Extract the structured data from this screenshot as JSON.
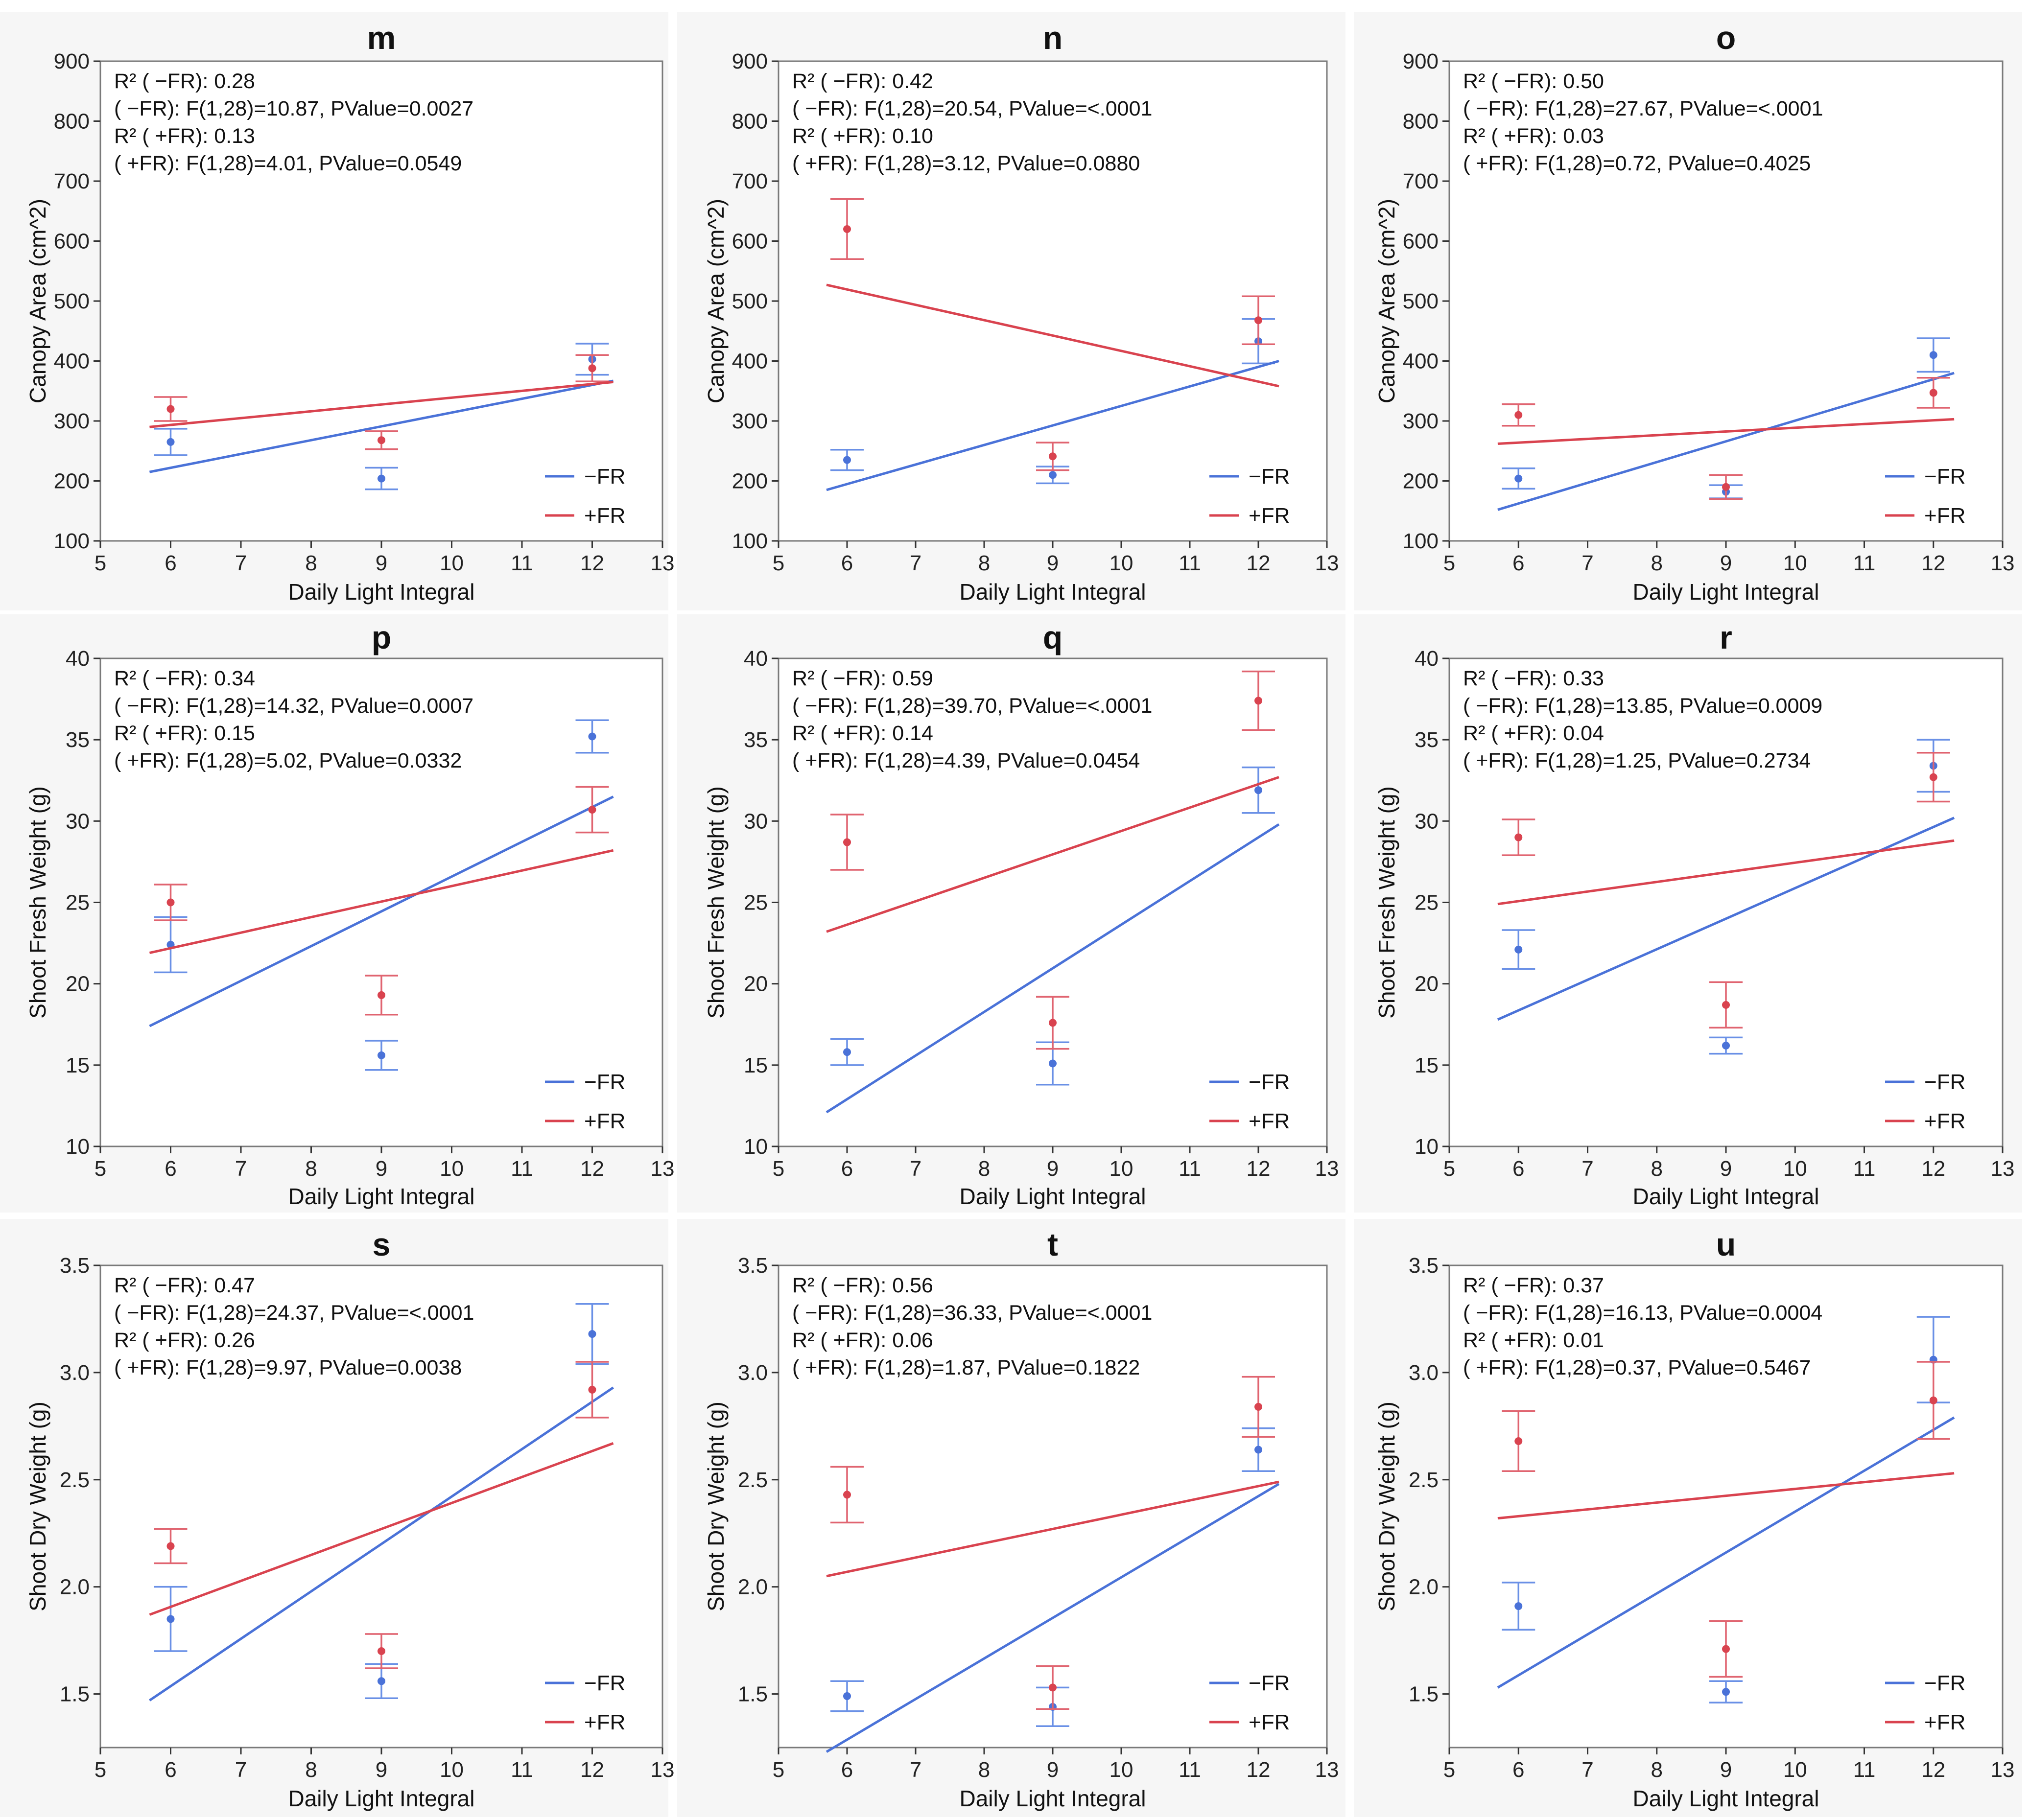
{
  "colors": {
    "minus_fr": "#4a72d8",
    "plus_fr": "#d9434f",
    "error_minus_fr": "#6a90e6",
    "error_plus_fr": "#e06470"
  },
  "legend": {
    "minus_fr": "−FR",
    "plus_fr": "+FR"
  },
  "chart_data": [
    {
      "type": "scatter",
      "title": "m",
      "xlabel": "Daily Light Integral",
      "ylabel": "Canopy Area (cm^2)",
      "xlim": [
        5,
        13
      ],
      "ylim": [
        100,
        900
      ],
      "xticks": [
        "5",
        "6",
        "7",
        "8",
        "9",
        "10",
        "11",
        "12",
        "13"
      ],
      "yticks": [
        "100",
        "200",
        "300",
        "400",
        "500",
        "600",
        "700",
        "800",
        "900"
      ],
      "stats": [
        "R² ( −FR): 0.28",
        "( −FR): F(1,28)=10.87, PValue=0.0027",
        "R² ( +FR): 0.13",
        "( +FR): F(1,28)=4.01, PValue=0.0549"
      ],
      "series": [
        {
          "name": "−FR",
          "points": [
            {
              "x": 6,
              "y": 265,
              "lo": 243,
              "hi": 287
            },
            {
              "x": 9,
              "y": 204,
              "lo": 186,
              "hi": 222
            },
            {
              "x": 12,
              "y": 403,
              "lo": 377,
              "hi": 429
            }
          ],
          "fit": [
            [
              5.7,
              215
            ],
            [
              12.3,
              367
            ]
          ]
        },
        {
          "name": "+FR",
          "points": [
            {
              "x": 6,
              "y": 320,
              "lo": 300,
              "hi": 340
            },
            {
              "x": 9,
              "y": 268,
              "lo": 253,
              "hi": 283
            },
            {
              "x": 12,
              "y": 388,
              "lo": 366,
              "hi": 410
            }
          ],
          "fit": [
            [
              5.7,
              290
            ],
            [
              12.3,
              365
            ]
          ]
        }
      ]
    },
    {
      "type": "scatter",
      "title": "n",
      "xlabel": "Daily Light Integral",
      "ylabel": "Canopy Area (cm^2)",
      "xlim": [
        5,
        13
      ],
      "ylim": [
        100,
        900
      ],
      "xticks": [
        "5",
        "6",
        "7",
        "8",
        "9",
        "10",
        "11",
        "12",
        "13"
      ],
      "yticks": [
        "100",
        "200",
        "300",
        "400",
        "500",
        "600",
        "700",
        "800",
        "900"
      ],
      "stats": [
        "R² ( −FR): 0.42",
        "( −FR): F(1,28)=20.54, PValue=<.0001",
        "R² ( +FR): 0.10",
        "( +FR): F(1,28)=3.12, PValue=0.0880"
      ],
      "series": [
        {
          "name": "−FR",
          "points": [
            {
              "x": 6,
              "y": 235,
              "lo": 218,
              "hi": 252
            },
            {
              "x": 9,
              "y": 210,
              "lo": 196,
              "hi": 224
            },
            {
              "x": 12,
              "y": 433,
              "lo": 396,
              "hi": 470
            }
          ],
          "fit": [
            [
              5.7,
              185
            ],
            [
              12.3,
              400
            ]
          ]
        },
        {
          "name": "+FR",
          "points": [
            {
              "x": 6,
              "y": 620,
              "lo": 570,
              "hi": 670
            },
            {
              "x": 9,
              "y": 241,
              "lo": 218,
              "hi": 264
            },
            {
              "x": 12,
              "y": 468,
              "lo": 428,
              "hi": 508
            }
          ],
          "fit": [
            [
              5.7,
              527
            ],
            [
              12.3,
              358
            ]
          ]
        }
      ]
    },
    {
      "type": "scatter",
      "title": "o",
      "xlabel": "Daily Light Integral",
      "ylabel": "Canopy Area (cm^2)",
      "xlim": [
        5,
        13
      ],
      "ylim": [
        100,
        900
      ],
      "xticks": [
        "5",
        "6",
        "7",
        "8",
        "9",
        "10",
        "11",
        "12",
        "13"
      ],
      "yticks": [
        "100",
        "200",
        "300",
        "400",
        "500",
        "600",
        "700",
        "800",
        "900"
      ],
      "stats": [
        "R² ( −FR): 0.50",
        "( −FR): F(1,28)=27.67, PValue=<.0001",
        "R² ( +FR): 0.03",
        "( +FR): F(1,28)=0.72, PValue=0.4025"
      ],
      "series": [
        {
          "name": "−FR",
          "points": [
            {
              "x": 6,
              "y": 204,
              "lo": 187,
              "hi": 221
            },
            {
              "x": 9,
              "y": 182,
              "lo": 171,
              "hi": 193
            },
            {
              "x": 12,
              "y": 410,
              "lo": 382,
              "hi": 438
            }
          ],
          "fit": [
            [
              5.7,
              152
            ],
            [
              12.3,
              380
            ]
          ]
        },
        {
          "name": "+FR",
          "points": [
            {
              "x": 6,
              "y": 310,
              "lo": 292,
              "hi": 328
            },
            {
              "x": 9,
              "y": 190,
              "lo": 170,
              "hi": 210
            },
            {
              "x": 12,
              "y": 347,
              "lo": 322,
              "hi": 372
            }
          ],
          "fit": [
            [
              5.7,
              262
            ],
            [
              12.3,
              303
            ]
          ]
        }
      ]
    },
    {
      "type": "scatter",
      "title": "p",
      "xlabel": "Daily Light Integral",
      "ylabel": "Shoot Fresh Weight (g)",
      "xlim": [
        5,
        13
      ],
      "ylim": [
        10,
        40
      ],
      "xticks": [
        "5",
        "6",
        "7",
        "8",
        "9",
        "10",
        "11",
        "12",
        "13"
      ],
      "yticks": [
        "10",
        "15",
        "20",
        "25",
        "30",
        "35",
        "40"
      ],
      "stats": [
        "R² ( −FR): 0.34",
        "( −FR): F(1,28)=14.32, PValue=0.0007",
        "R² ( +FR): 0.15",
        "( +FR): F(1,28)=5.02, PValue=0.0332"
      ],
      "series": [
        {
          "name": "−FR",
          "points": [
            {
              "x": 6,
              "y": 22.4,
              "lo": 20.7,
              "hi": 24.1
            },
            {
              "x": 9,
              "y": 15.6,
              "lo": 14.7,
              "hi": 16.5
            },
            {
              "x": 12,
              "y": 35.2,
              "lo": 34.2,
              "hi": 36.2
            }
          ],
          "fit": [
            [
              5.7,
              17.4
            ],
            [
              12.3,
              31.5
            ]
          ]
        },
        {
          "name": "+FR",
          "points": [
            {
              "x": 6,
              "y": 25.0,
              "lo": 23.9,
              "hi": 26.1
            },
            {
              "x": 9,
              "y": 19.3,
              "lo": 18.1,
              "hi": 20.5
            },
            {
              "x": 12,
              "y": 30.7,
              "lo": 29.3,
              "hi": 32.1
            }
          ],
          "fit": [
            [
              5.7,
              21.9
            ],
            [
              12.3,
              28.2
            ]
          ]
        }
      ]
    },
    {
      "type": "scatter",
      "title": "q",
      "xlabel": "Daily Light Integral",
      "ylabel": "Shoot Fresh Weight (g)",
      "xlim": [
        5,
        13
      ],
      "ylim": [
        10,
        40
      ],
      "xticks": [
        "5",
        "6",
        "7",
        "8",
        "9",
        "10",
        "11",
        "12",
        "13"
      ],
      "yticks": [
        "10",
        "15",
        "20",
        "25",
        "30",
        "35",
        "40"
      ],
      "stats": [
        "R² ( −FR): 0.59",
        "( −FR): F(1,28)=39.70, PValue=<.0001",
        "R² ( +FR): 0.14",
        "( +FR): F(1,28)=4.39, PValue=0.0454"
      ],
      "series": [
        {
          "name": "−FR",
          "points": [
            {
              "x": 6,
              "y": 15.8,
              "lo": 15.0,
              "hi": 16.6
            },
            {
              "x": 9,
              "y": 15.1,
              "lo": 13.8,
              "hi": 16.4
            },
            {
              "x": 12,
              "y": 31.9,
              "lo": 30.5,
              "hi": 33.3
            }
          ],
          "fit": [
            [
              5.7,
              12.1
            ],
            [
              12.3,
              29.8
            ]
          ]
        },
        {
          "name": "+FR",
          "points": [
            {
              "x": 6,
              "y": 28.7,
              "lo": 27.0,
              "hi": 30.4
            },
            {
              "x": 9,
              "y": 17.6,
              "lo": 16.0,
              "hi": 19.2
            },
            {
              "x": 12,
              "y": 37.4,
              "lo": 35.6,
              "hi": 39.2
            }
          ],
          "fit": [
            [
              5.7,
              23.2
            ],
            [
              12.3,
              32.7
            ]
          ]
        }
      ]
    },
    {
      "type": "scatter",
      "title": "r",
      "xlabel": "Daily Light Integral",
      "ylabel": "Shoot Fresh Weight (g)",
      "xlim": [
        5,
        13
      ],
      "ylim": [
        10,
        40
      ],
      "xticks": [
        "5",
        "6",
        "7",
        "8",
        "9",
        "10",
        "11",
        "12",
        "13"
      ],
      "yticks": [
        "10",
        "15",
        "20",
        "25",
        "30",
        "35",
        "40"
      ],
      "stats": [
        "R² ( −FR): 0.33",
        "( −FR): F(1,28)=13.85, PValue=0.0009",
        "R² ( +FR): 0.04",
        "( +FR): F(1,28)=1.25, PValue=0.2734"
      ],
      "series": [
        {
          "name": "−FR",
          "points": [
            {
              "x": 6,
              "y": 22.1,
              "lo": 20.9,
              "hi": 23.3
            },
            {
              "x": 9,
              "y": 16.2,
              "lo": 15.7,
              "hi": 16.7
            },
            {
              "x": 12,
              "y": 33.4,
              "lo": 31.8,
              "hi": 35.0
            }
          ],
          "fit": [
            [
              5.7,
              17.8
            ],
            [
              12.3,
              30.2
            ]
          ]
        },
        {
          "name": "+FR",
          "points": [
            {
              "x": 6,
              "y": 29.0,
              "lo": 27.9,
              "hi": 30.1
            },
            {
              "x": 9,
              "y": 18.7,
              "lo": 17.3,
              "hi": 20.1
            },
            {
              "x": 12,
              "y": 32.7,
              "lo": 31.2,
              "hi": 34.2
            }
          ],
          "fit": [
            [
              5.7,
              24.9
            ],
            [
              12.3,
              28.8
            ]
          ]
        }
      ]
    },
    {
      "type": "scatter",
      "title": "s",
      "xlabel": "Daily Light Integral",
      "ylabel": "Shoot Dry Weight (g)",
      "xlim": [
        5,
        13
      ],
      "ylim": [
        1.25,
        3.5
      ],
      "xticks": [
        "5",
        "6",
        "7",
        "8",
        "9",
        "10",
        "11",
        "12",
        "13"
      ],
      "yticks": [
        "1.5",
        "2.0",
        "2.5",
        "3.0",
        "3.5"
      ],
      "stats": [
        "R² ( −FR): 0.47",
        "( −FR): F(1,28)=24.37, PValue=<.0001",
        "R² ( +FR): 0.26",
        "( +FR): F(1,28)=9.97, PValue=0.0038"
      ],
      "series": [
        {
          "name": "−FR",
          "points": [
            {
              "x": 6,
              "y": 1.85,
              "lo": 1.7,
              "hi": 2.0
            },
            {
              "x": 9,
              "y": 1.56,
              "lo": 1.48,
              "hi": 1.64
            },
            {
              "x": 12,
              "y": 3.18,
              "lo": 3.04,
              "hi": 3.32
            }
          ],
          "fit": [
            [
              5.7,
              1.47
            ],
            [
              12.3,
              2.93
            ]
          ]
        },
        {
          "name": "+FR",
          "points": [
            {
              "x": 6,
              "y": 2.19,
              "lo": 2.11,
              "hi": 2.27
            },
            {
              "x": 9,
              "y": 1.7,
              "lo": 1.62,
              "hi": 1.78
            },
            {
              "x": 12,
              "y": 2.92,
              "lo": 2.79,
              "hi": 3.05
            }
          ],
          "fit": [
            [
              5.7,
              1.87
            ],
            [
              12.3,
              2.67
            ]
          ]
        }
      ]
    },
    {
      "type": "scatter",
      "title": "t",
      "xlabel": "Daily Light Integral",
      "ylabel": "Shoot Dry Weight (g)",
      "xlim": [
        5,
        13
      ],
      "ylim": [
        1.25,
        3.5
      ],
      "xticks": [
        "5",
        "6",
        "7",
        "8",
        "9",
        "10",
        "11",
        "12",
        "13"
      ],
      "yticks": [
        "1.5",
        "2.0",
        "2.5",
        "3.0",
        "3.5"
      ],
      "stats": [
        "R² ( −FR): 0.56",
        "( −FR): F(1,28)=36.33, PValue=<.0001",
        "R² ( +FR): 0.06",
        "( +FR): F(1,28)=1.87, PValue=0.1822"
      ],
      "series": [
        {
          "name": "−FR",
          "points": [
            {
              "x": 6,
              "y": 1.49,
              "lo": 1.42,
              "hi": 1.56
            },
            {
              "x": 9,
              "y": 1.44,
              "lo": 1.35,
              "hi": 1.53
            },
            {
              "x": 12,
              "y": 2.64,
              "lo": 2.54,
              "hi": 2.74
            }
          ],
          "fit": [
            [
              5.7,
              1.23
            ],
            [
              12.3,
              2.48
            ]
          ]
        },
        {
          "name": "+FR",
          "points": [
            {
              "x": 6,
              "y": 2.43,
              "lo": 2.3,
              "hi": 2.56
            },
            {
              "x": 9,
              "y": 1.53,
              "lo": 1.43,
              "hi": 1.63
            },
            {
              "x": 12,
              "y": 2.84,
              "lo": 2.7,
              "hi": 2.98
            }
          ],
          "fit": [
            [
              5.7,
              2.05
            ],
            [
              12.3,
              2.49
            ]
          ]
        }
      ]
    },
    {
      "type": "scatter",
      "title": "u",
      "xlabel": "Daily Light Integral",
      "ylabel": "Shoot Dry Weight (g)",
      "xlim": [
        5,
        13
      ],
      "ylim": [
        1.25,
        3.5
      ],
      "xticks": [
        "5",
        "6",
        "7",
        "8",
        "9",
        "10",
        "11",
        "12",
        "13"
      ],
      "yticks": [
        "1.5",
        "2.0",
        "2.5",
        "3.0",
        "3.5"
      ],
      "stats": [
        "R² ( −FR): 0.37",
        "( −FR): F(1,28)=16.13, PValue=0.0004",
        "R² ( +FR): 0.01",
        "( +FR): F(1,28)=0.37, PValue=0.5467"
      ],
      "series": [
        {
          "name": "−FR",
          "points": [
            {
              "x": 6,
              "y": 1.91,
              "lo": 1.8,
              "hi": 2.02
            },
            {
              "x": 9,
              "y": 1.51,
              "lo": 1.46,
              "hi": 1.56
            },
            {
              "x": 12,
              "y": 3.06,
              "lo": 2.86,
              "hi": 3.26
            }
          ],
          "fit": [
            [
              5.7,
              1.53
            ],
            [
              12.3,
              2.79
            ]
          ]
        },
        {
          "name": "+FR",
          "points": [
            {
              "x": 6,
              "y": 2.68,
              "lo": 2.54,
              "hi": 2.82
            },
            {
              "x": 9,
              "y": 1.71,
              "lo": 1.58,
              "hi": 1.84
            },
            {
              "x": 12,
              "y": 2.87,
              "lo": 2.69,
              "hi": 3.05
            }
          ],
          "fit": [
            [
              5.7,
              2.32
            ],
            [
              12.3,
              2.53
            ]
          ]
        }
      ]
    }
  ]
}
